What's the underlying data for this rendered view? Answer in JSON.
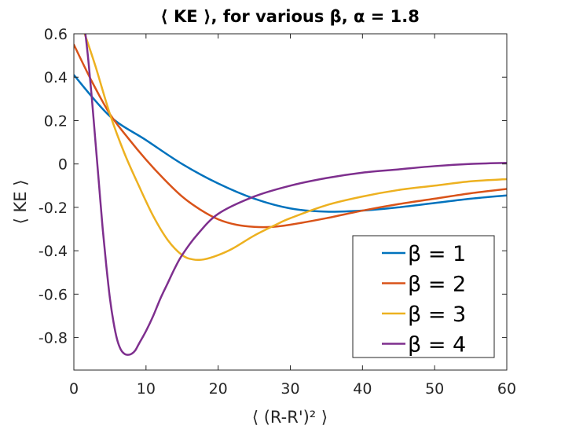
{
  "chart_data": {
    "type": "line",
    "title": "⟨ KE ⟩, for various β, α = 1.8",
    "xlabel": "⟨ (R-R')² ⟩",
    "ylabel": "⟨ KE ⟩",
    "xlim": [
      0,
      60
    ],
    "ylim": [
      -0.95,
      0.6
    ],
    "xticks": [
      0,
      10,
      20,
      30,
      40,
      50,
      60
    ],
    "xtick_labels": [
      "0",
      "10",
      "20",
      "30",
      "40",
      "50",
      "60"
    ],
    "yticks": [
      0.6,
      0.4,
      0.2,
      0,
      -0.2,
      -0.4,
      -0.6,
      -0.8
    ],
    "ytick_labels": [
      "0.6",
      "0.4",
      "0.2",
      "0",
      "-0.2",
      "-0.4",
      "-0.6",
      "-0.8"
    ],
    "grid": false,
    "legend_position": "bottom-right",
    "series": [
      {
        "name": "β = 1",
        "color": "#0072BD",
        "x": [
          0,
          5,
          10,
          15,
          20,
          25,
          30,
          35,
          40,
          45,
          50,
          55,
          60
        ],
        "y": [
          0.41,
          0.22,
          0.11,
          0.0,
          -0.09,
          -0.16,
          -0.205,
          -0.22,
          -0.215,
          -0.2,
          -0.18,
          -0.16,
          -0.145
        ]
      },
      {
        "name": "β = 2",
        "color": "#D95319",
        "x": [
          0,
          2.5,
          5,
          7.5,
          10,
          12.5,
          15,
          17.5,
          20,
          22.5,
          25,
          27.5,
          30,
          35,
          40,
          45,
          50,
          55,
          60
        ],
        "y": [
          0.55,
          0.38,
          0.23,
          0.12,
          0.02,
          -0.07,
          -0.15,
          -0.21,
          -0.255,
          -0.28,
          -0.29,
          -0.29,
          -0.28,
          -0.25,
          -0.215,
          -0.185,
          -0.16,
          -0.135,
          -0.115
        ]
      },
      {
        "name": "β = 3",
        "color": "#EDB120",
        "x": [
          1.5,
          3,
          5,
          7,
          9,
          11,
          13,
          15,
          16.5,
          18,
          20,
          22,
          25,
          28,
          30,
          35,
          40,
          45,
          50,
          55,
          60
        ],
        "y": [
          0.6,
          0.45,
          0.23,
          0.05,
          -0.1,
          -0.24,
          -0.35,
          -0.42,
          -0.44,
          -0.44,
          -0.42,
          -0.39,
          -0.33,
          -0.28,
          -0.25,
          -0.19,
          -0.15,
          -0.12,
          -0.1,
          -0.08,
          -0.07
        ]
      },
      {
        "name": "β = 4",
        "color": "#7E2F8E",
        "x": [
          1.6,
          2,
          2.5,
          3,
          3.5,
          4,
          4.5,
          5,
          5.5,
          6,
          6.5,
          7,
          7.5,
          8,
          8.5,
          9,
          10,
          11,
          12,
          13,
          14,
          15,
          17,
          20,
          25,
          30,
          35,
          40,
          45,
          50,
          55,
          60
        ],
        "y": [
          0.6,
          0.48,
          0.3,
          0.1,
          -0.1,
          -0.3,
          -0.47,
          -0.62,
          -0.73,
          -0.81,
          -0.855,
          -0.875,
          -0.88,
          -0.875,
          -0.86,
          -0.83,
          -0.77,
          -0.7,
          -0.62,
          -0.55,
          -0.48,
          -0.42,
          -0.33,
          -0.23,
          -0.15,
          -0.1,
          -0.065,
          -0.04,
          -0.025,
          -0.01,
          0.0,
          0.005
        ]
      }
    ]
  }
}
